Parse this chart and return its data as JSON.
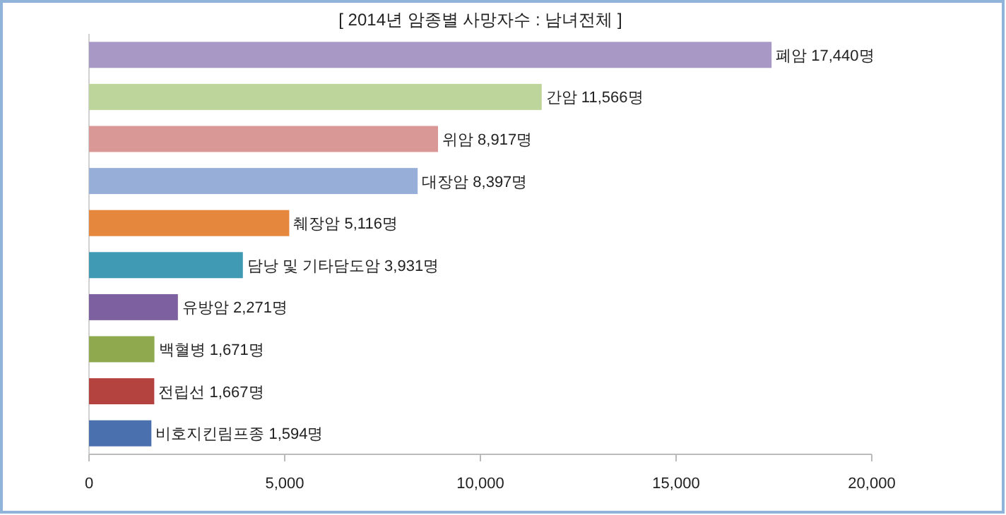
{
  "chart_data": {
    "type": "bar",
    "orientation": "horizontal",
    "title": "[ 2014년 암종별 사망자수 : 남녀전체 ]",
    "categories": [
      "폐암",
      "간암",
      "위암",
      "대장암",
      "췌장암",
      "담낭 및 기타담도암",
      "유방암",
      "백혈병",
      "전립선",
      "비호지킨림프종"
    ],
    "values": [
      17440,
      11566,
      8917,
      8397,
      5116,
      3931,
      2271,
      1671,
      1667,
      1594
    ],
    "colors": [
      "#a898c6",
      "#bdd49a",
      "#d99796",
      "#97aed9",
      "#e5873c",
      "#409ab3",
      "#7d609f",
      "#8fa94f",
      "#b4433f",
      "#4a71ad"
    ],
    "value_labels": [
      "17,440명",
      "11,566명",
      "8,917명",
      "8,397명",
      "5,116명",
      "3,931명",
      "2,271명",
      "1,671명",
      "1,667명",
      "1,594명"
    ],
    "xlim": [
      0,
      20000
    ],
    "xticks": [
      0,
      {
        "value": 5000,
        "label": "5,000"
      },
      {
        "value": 10000,
        "label": "10,000"
      },
      {
        "value": 15000,
        "label": "15,000"
      },
      {
        "value": 20000,
        "label": "20,000"
      }
    ]
  }
}
